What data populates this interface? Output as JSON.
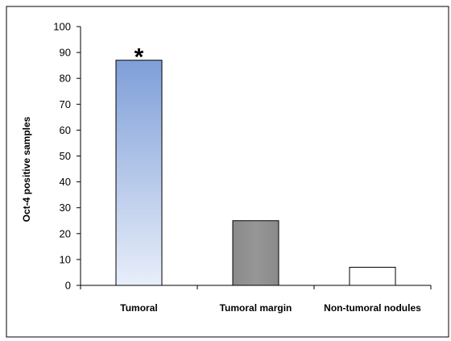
{
  "chart_data": {
    "type": "bar",
    "title": "",
    "xlabel": "",
    "ylabel": "Oct-4 positive samples",
    "ylim": [
      0,
      100
    ],
    "yticks": [
      0,
      10,
      20,
      30,
      40,
      50,
      60,
      70,
      80,
      90,
      100
    ],
    "grid": false,
    "legend": "none",
    "categories": [
      "Tumoral",
      "Tumoral margin",
      "Non-tumoral nodules"
    ],
    "values": [
      87,
      25,
      7
    ],
    "colors": [
      "#7f9fd8",
      "#8c8c8c",
      "#ffffff"
    ],
    "annotations": [
      {
        "category": "Tumoral",
        "text": "*"
      }
    ]
  }
}
